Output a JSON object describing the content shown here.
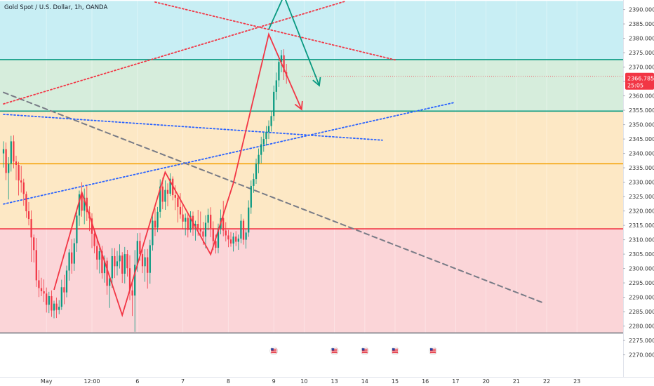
{
  "header": {
    "symbol_title": "Gold Spot / U.S. Dollar, 1h, OANDA"
  },
  "price_tag": {
    "price": "2366.785",
    "countdown": "25:05",
    "color": "#f23645"
  },
  "colors": {
    "zone_top": "#c8eef4",
    "zone_green": "#d6eddc",
    "zone_orange": "#fde8c5",
    "zone_red": "#fbd5d8",
    "line_green": "#089981",
    "line_yellow": "#f5a30c",
    "line_red": "#f23645",
    "line_gray": "#787b86",
    "line_blue": "#2962ff",
    "up": "#089981",
    "down": "#f23645"
  },
  "chart_data": {
    "type": "candlestick",
    "title": "Gold Spot / U.S. Dollar, 1h, OANDA",
    "ylim": [
      2265,
      2393
    ],
    "y_ticks": [
      "2270.000",
      "2275.000",
      "2280.000",
      "2285.000",
      "2290.000",
      "2295.000",
      "2300.000",
      "2305.000",
      "2310.000",
      "2315.000",
      "2320.000",
      "2325.000",
      "2330.000",
      "2335.000",
      "2340.000",
      "2345.000",
      "2350.000",
      "2355.000",
      "2360.000",
      "2365.000",
      "2370.000",
      "2375.000",
      "2380.000",
      "2385.000",
      "2390.000"
    ],
    "x_ticks": [
      "May",
      "12:00",
      "6",
      "7",
      "8",
      "9",
      "10",
      "13",
      "14",
      "15",
      "16",
      "17",
      "20",
      "21",
      "22",
      "23"
    ],
    "x_tick_index": [
      17,
      35,
      53,
      71,
      89,
      107,
      119,
      131,
      143,
      155,
      167,
      179,
      191,
      203,
      215,
      227
    ],
    "horizontal_levels": [
      {
        "price": 2372.6,
        "color": "line_green"
      },
      {
        "price": 2354.7,
        "color": "line_green"
      },
      {
        "price": 2336.4,
        "color": "line_yellow"
      },
      {
        "price": 2313.8,
        "color": "line_red"
      },
      {
        "price": 2277.6,
        "color": "line_gray"
      }
    ],
    "zones": [
      {
        "from": 2372.6,
        "to": 2393,
        "color": "zone_top"
      },
      {
        "from": 2354.7,
        "to": 2372.6,
        "color": "zone_green"
      },
      {
        "from": 2336.4,
        "to": 2354.7,
        "color": "zone_orange"
      },
      {
        "from": 2313.8,
        "to": 2336.4,
        "color": "zone_orange"
      },
      {
        "from": 2277.6,
        "to": 2313.8,
        "color": "zone_red"
      }
    ],
    "trend_lines": [
      {
        "from": [
          0,
          2361.2
        ],
        "to": [
          213,
          2288.3
        ],
        "style": "dashed",
        "color": "line_gray"
      },
      {
        "from": [
          0,
          2353.6
        ],
        "to": [
          150,
          2344.6
        ],
        "style": "dotted",
        "color": "line_blue"
      },
      {
        "from": [
          0,
          2322.4
        ],
        "to": [
          178,
          2357.6
        ],
        "style": "dotted",
        "color": "line_blue"
      },
      {
        "from": [
          0,
          2357.2
        ],
        "to": [
          135,
          2392.8
        ],
        "style": "dotted",
        "color": "line_red"
      },
      {
        "from": [
          60,
          2392.6
        ],
        "to": [
          155,
          2372.5
        ],
        "style": "dotted",
        "color": "line_red"
      }
    ],
    "zigzag": [
      [
        20,
        2292.6
      ],
      [
        31,
        2326.5
      ],
      [
        47,
        2283.8
      ],
      [
        64,
        2333.5
      ],
      [
        82,
        2304.9
      ],
      [
        91,
        2329.7
      ],
      [
        105,
        2381.4
      ],
      [
        118,
        2355.3
      ]
    ],
    "projection": [
      [
        105,
        2383.1
      ],
      [
        111,
        2394.8
      ],
      [
        125,
        2363.6
      ]
    ],
    "event_markers": [
      107,
      131,
      143,
      155,
      170
    ],
    "candles": [
      {
        "o": 2340.0,
        "h": 2344.2,
        "l": 2335.1,
        "c": 2341.5
      },
      {
        "o": 2341.5,
        "h": 2343.8,
        "l": 2330.7,
        "c": 2333.2
      },
      {
        "o": 2333.2,
        "h": 2338.7,
        "l": 2324.0,
        "c": 2336.4
      },
      {
        "o": 2336.4,
        "h": 2346.1,
        "l": 2333.7,
        "c": 2344.2
      },
      {
        "o": 2344.2,
        "h": 2346.3,
        "l": 2334.8,
        "c": 2337.2
      },
      {
        "o": 2337.2,
        "h": 2339.2,
        "l": 2330.7,
        "c": 2336.0
      },
      {
        "o": 2336.0,
        "h": 2337.1,
        "l": 2325.4,
        "c": 2330.6
      },
      {
        "o": 2330.6,
        "h": 2335.7,
        "l": 2326.4,
        "c": 2329.9
      },
      {
        "o": 2329.9,
        "h": 2331.2,
        "l": 2321.8,
        "c": 2325.9
      },
      {
        "o": 2325.9,
        "h": 2326.8,
        "l": 2317.6,
        "c": 2319.9
      },
      {
        "o": 2319.9,
        "h": 2323.1,
        "l": 2315.0,
        "c": 2317.2
      },
      {
        "o": 2317.2,
        "h": 2320.2,
        "l": 2302.3,
        "c": 2310.8
      },
      {
        "o": 2310.8,
        "h": 2311.8,
        "l": 2302.1,
        "c": 2306.4
      },
      {
        "o": 2306.4,
        "h": 2310.6,
        "l": 2293.6,
        "c": 2295.9
      },
      {
        "o": 2295.9,
        "h": 2299.4,
        "l": 2290.1,
        "c": 2293.2
      },
      {
        "o": 2293.2,
        "h": 2296.8,
        "l": 2290.4,
        "c": 2292.1
      },
      {
        "o": 2292.1,
        "h": 2296.2,
        "l": 2288.4,
        "c": 2291.3
      },
      {
        "o": 2291.3,
        "h": 2293.4,
        "l": 2284.7,
        "c": 2287.4
      },
      {
        "o": 2287.4,
        "h": 2291.9,
        "l": 2284.5,
        "c": 2290.4
      },
      {
        "o": 2290.4,
        "h": 2292.4,
        "l": 2283.2,
        "c": 2285.4
      },
      {
        "o": 2285.4,
        "h": 2288.8,
        "l": 2282.7,
        "c": 2287.8
      },
      {
        "o": 2287.8,
        "h": 2289.9,
        "l": 2282.8,
        "c": 2285.6
      },
      {
        "o": 2285.6,
        "h": 2289.0,
        "l": 2284.1,
        "c": 2286.7
      },
      {
        "o": 2286.7,
        "h": 2296.1,
        "l": 2285.6,
        "c": 2293.5
      },
      {
        "o": 2293.5,
        "h": 2297.8,
        "l": 2287.6,
        "c": 2291.7
      },
      {
        "o": 2291.7,
        "h": 2301.0,
        "l": 2290.0,
        "c": 2299.3
      },
      {
        "o": 2299.3,
        "h": 2306.7,
        "l": 2295.8,
        "c": 2305.6
      },
      {
        "o": 2305.6,
        "h": 2310.2,
        "l": 2298.2,
        "c": 2301.7
      },
      {
        "o": 2301.7,
        "h": 2310.5,
        "l": 2299.2,
        "c": 2308.8
      },
      {
        "o": 2308.8,
        "h": 2320.9,
        "l": 2305.8,
        "c": 2318.4
      },
      {
        "o": 2318.4,
        "h": 2327.1,
        "l": 2314.8,
        "c": 2325.8
      },
      {
        "o": 2325.8,
        "h": 2330.0,
        "l": 2318.0,
        "c": 2320.1
      },
      {
        "o": 2320.1,
        "h": 2327.8,
        "l": 2315.4,
        "c": 2324.6
      },
      {
        "o": 2324.6,
        "h": 2328.7,
        "l": 2316.5,
        "c": 2319.6
      },
      {
        "o": 2319.6,
        "h": 2321.6,
        "l": 2313.0,
        "c": 2317.4
      },
      {
        "o": 2317.4,
        "h": 2319.2,
        "l": 2307.1,
        "c": 2312.1
      },
      {
        "o": 2312.1,
        "h": 2313.6,
        "l": 2305.3,
        "c": 2307.8
      },
      {
        "o": 2307.8,
        "h": 2310.5,
        "l": 2299.6,
        "c": 2303.1
      },
      {
        "o": 2303.1,
        "h": 2308.5,
        "l": 2298.3,
        "c": 2306.0
      },
      {
        "o": 2306.0,
        "h": 2307.9,
        "l": 2296.5,
        "c": 2298.4
      },
      {
        "o": 2298.4,
        "h": 2304.5,
        "l": 2295.1,
        "c": 2302.7
      },
      {
        "o": 2302.7,
        "h": 2303.8,
        "l": 2290.9,
        "c": 2294.0
      },
      {
        "o": 2294.0,
        "h": 2297.6,
        "l": 2286.3,
        "c": 2296.6
      },
      {
        "o": 2296.6,
        "h": 2307.1,
        "l": 2293.3,
        "c": 2304.3
      },
      {
        "o": 2304.3,
        "h": 2307.1,
        "l": 2296.7,
        "c": 2300.8
      },
      {
        "o": 2300.8,
        "h": 2306.1,
        "l": 2297.6,
        "c": 2302.5
      },
      {
        "o": 2302.5,
        "h": 2308.4,
        "l": 2300.0,
        "c": 2304.5
      },
      {
        "o": 2304.5,
        "h": 2305.7,
        "l": 2295.0,
        "c": 2298.2
      },
      {
        "o": 2298.2,
        "h": 2307.5,
        "l": 2294.8,
        "c": 2305.0
      },
      {
        "o": 2305.0,
        "h": 2306.5,
        "l": 2297.2,
        "c": 2300.1
      },
      {
        "o": 2300.1,
        "h": 2304.6,
        "l": 2289.0,
        "c": 2292.4
      },
      {
        "o": 2292.4,
        "h": 2296.2,
        "l": 2283.5,
        "c": 2290.6
      },
      {
        "o": 2290.6,
        "h": 2306.4,
        "l": 2278.0,
        "c": 2301.3
      },
      {
        "o": 2301.3,
        "h": 2312.3,
        "l": 2298.8,
        "c": 2309.6
      },
      {
        "o": 2309.6,
        "h": 2312.4,
        "l": 2302.7,
        "c": 2305.0
      },
      {
        "o": 2305.0,
        "h": 2307.6,
        "l": 2298.4,
        "c": 2300.8
      },
      {
        "o": 2300.8,
        "h": 2306.7,
        "l": 2295.4,
        "c": 2303.9
      },
      {
        "o": 2303.9,
        "h": 2306.8,
        "l": 2293.0,
        "c": 2298.5
      },
      {
        "o": 2298.5,
        "h": 2310.0,
        "l": 2294.7,
        "c": 2308.1
      },
      {
        "o": 2308.1,
        "h": 2318.6,
        "l": 2306.2,
        "c": 2316.6
      },
      {
        "o": 2316.6,
        "h": 2321.0,
        "l": 2311.3,
        "c": 2314.2
      },
      {
        "o": 2314.2,
        "h": 2321.4,
        "l": 2312.6,
        "c": 2319.7
      },
      {
        "o": 2319.7,
        "h": 2331.0,
        "l": 2317.6,
        "c": 2328.5
      },
      {
        "o": 2328.5,
        "h": 2331.6,
        "l": 2320.6,
        "c": 2323.2
      },
      {
        "o": 2323.2,
        "h": 2330.6,
        "l": 2320.4,
        "c": 2327.3
      },
      {
        "o": 2327.3,
        "h": 2329.6,
        "l": 2321.6,
        "c": 2326.0
      },
      {
        "o": 2326.0,
        "h": 2333.1,
        "l": 2325.2,
        "c": 2331.2
      },
      {
        "o": 2331.2,
        "h": 2332.0,
        "l": 2323.7,
        "c": 2325.5
      },
      {
        "o": 2325.5,
        "h": 2328.9,
        "l": 2320.3,
        "c": 2324.6
      },
      {
        "o": 2324.6,
        "h": 2325.8,
        "l": 2316.0,
        "c": 2321.4
      },
      {
        "o": 2321.4,
        "h": 2326.2,
        "l": 2317.3,
        "c": 2318.8
      },
      {
        "o": 2318.8,
        "h": 2322.7,
        "l": 2313.6,
        "c": 2316.3
      },
      {
        "o": 2316.3,
        "h": 2319.1,
        "l": 2311.5,
        "c": 2317.6
      },
      {
        "o": 2317.6,
        "h": 2319.3,
        "l": 2310.8,
        "c": 2313.4
      },
      {
        "o": 2313.4,
        "h": 2319.9,
        "l": 2312.5,
        "c": 2318.3
      },
      {
        "o": 2318.3,
        "h": 2319.8,
        "l": 2311.4,
        "c": 2314.0
      },
      {
        "o": 2314.0,
        "h": 2316.6,
        "l": 2309.7,
        "c": 2315.5
      },
      {
        "o": 2315.5,
        "h": 2320.4,
        "l": 2311.4,
        "c": 2313.8
      },
      {
        "o": 2313.8,
        "h": 2319.8,
        "l": 2311.2,
        "c": 2312.9
      },
      {
        "o": 2312.9,
        "h": 2316.2,
        "l": 2308.2,
        "c": 2311.1
      },
      {
        "o": 2311.1,
        "h": 2318.5,
        "l": 2307.0,
        "c": 2315.9
      },
      {
        "o": 2315.9,
        "h": 2320.8,
        "l": 2313.3,
        "c": 2318.7
      },
      {
        "o": 2318.7,
        "h": 2321.3,
        "l": 2310.9,
        "c": 2314.0
      },
      {
        "o": 2314.0,
        "h": 2316.4,
        "l": 2306.4,
        "c": 2309.5
      },
      {
        "o": 2309.5,
        "h": 2311.8,
        "l": 2305.2,
        "c": 2307.2
      },
      {
        "o": 2307.2,
        "h": 2315.6,
        "l": 2305.3,
        "c": 2313.9
      },
      {
        "o": 2313.9,
        "h": 2320.5,
        "l": 2311.9,
        "c": 2317.5
      },
      {
        "o": 2317.5,
        "h": 2323.5,
        "l": 2311.2,
        "c": 2313.2
      },
      {
        "o": 2313.2,
        "h": 2316.1,
        "l": 2309.4,
        "c": 2311.5
      },
      {
        "o": 2311.5,
        "h": 2313.4,
        "l": 2307.4,
        "c": 2310.1
      },
      {
        "o": 2310.1,
        "h": 2312.7,
        "l": 2307.6,
        "c": 2308.7
      },
      {
        "o": 2308.7,
        "h": 2312.4,
        "l": 2305.9,
        "c": 2311.1
      },
      {
        "o": 2311.1,
        "h": 2313.0,
        "l": 2307.8,
        "c": 2309.3
      },
      {
        "o": 2309.3,
        "h": 2311.8,
        "l": 2306.5,
        "c": 2310.4
      },
      {
        "o": 2310.4,
        "h": 2318.9,
        "l": 2308.8,
        "c": 2316.6
      },
      {
        "o": 2316.6,
        "h": 2317.3,
        "l": 2308.3,
        "c": 2310.0
      },
      {
        "o": 2310.0,
        "h": 2313.7,
        "l": 2306.9,
        "c": 2312.5
      },
      {
        "o": 2312.5,
        "h": 2323.7,
        "l": 2311.0,
        "c": 2321.2
      },
      {
        "o": 2321.2,
        "h": 2330.6,
        "l": 2319.0,
        "c": 2328.7
      },
      {
        "o": 2328.7,
        "h": 2333.0,
        "l": 2326.3,
        "c": 2331.1
      },
      {
        "o": 2331.1,
        "h": 2338.2,
        "l": 2329.4,
        "c": 2336.4
      },
      {
        "o": 2336.4,
        "h": 2341.7,
        "l": 2333.1,
        "c": 2339.5
      },
      {
        "o": 2339.5,
        "h": 2345.8,
        "l": 2336.6,
        "c": 2343.2
      },
      {
        "o": 2343.2,
        "h": 2347.3,
        "l": 2340.6,
        "c": 2345.0
      },
      {
        "o": 2345.0,
        "h": 2349.5,
        "l": 2342.7,
        "c": 2347.4
      },
      {
        "o": 2347.4,
        "h": 2351.5,
        "l": 2345.0,
        "c": 2349.5
      },
      {
        "o": 2349.5,
        "h": 2354.9,
        "l": 2347.6,
        "c": 2353.0
      },
      {
        "o": 2353.0,
        "h": 2363.6,
        "l": 2351.3,
        "c": 2361.4
      },
      {
        "o": 2361.4,
        "h": 2368.1,
        "l": 2358.6,
        "c": 2365.4
      },
      {
        "o": 2365.4,
        "h": 2374.0,
        "l": 2363.1,
        "c": 2371.8
      },
      {
        "o": 2371.8,
        "h": 2376.0,
        "l": 2368.2,
        "c": 2374.1
      },
      {
        "o": 2374.1,
        "h": 2376.2,
        "l": 2365.5,
        "c": 2368.2
      },
      {
        "o": 2368.2,
        "h": 2371.1,
        "l": 2364.2,
        "c": 2366.8
      }
    ]
  }
}
